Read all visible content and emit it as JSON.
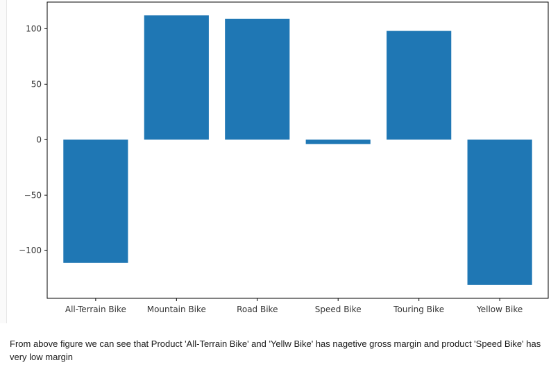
{
  "chart_data": {
    "type": "bar",
    "title": "",
    "xlabel": "",
    "ylabel": "",
    "categories": [
      "All-Terrain Bike",
      "Mountain Bike",
      "Road Bike",
      "Speed Bike",
      "Touring Bike",
      "Yellow Bike"
    ],
    "values": [
      -111,
      112,
      109,
      -4,
      98,
      -131
    ],
    "ylim": [
      -143,
      124
    ],
    "yticks": [
      100,
      50,
      0,
      -50,
      -100
    ],
    "ytick_labels": [
      "100",
      "50",
      "0",
      "−50",
      "−100"
    ],
    "bar_color": "#1f77b4",
    "grid": false,
    "legend": "none"
  },
  "caption": {
    "text": "From above figure we can see that Product 'All-Terrain Bike' and 'Yellw Bike' has nagetive gross margin and product 'Speed Bike' has very low margin"
  }
}
